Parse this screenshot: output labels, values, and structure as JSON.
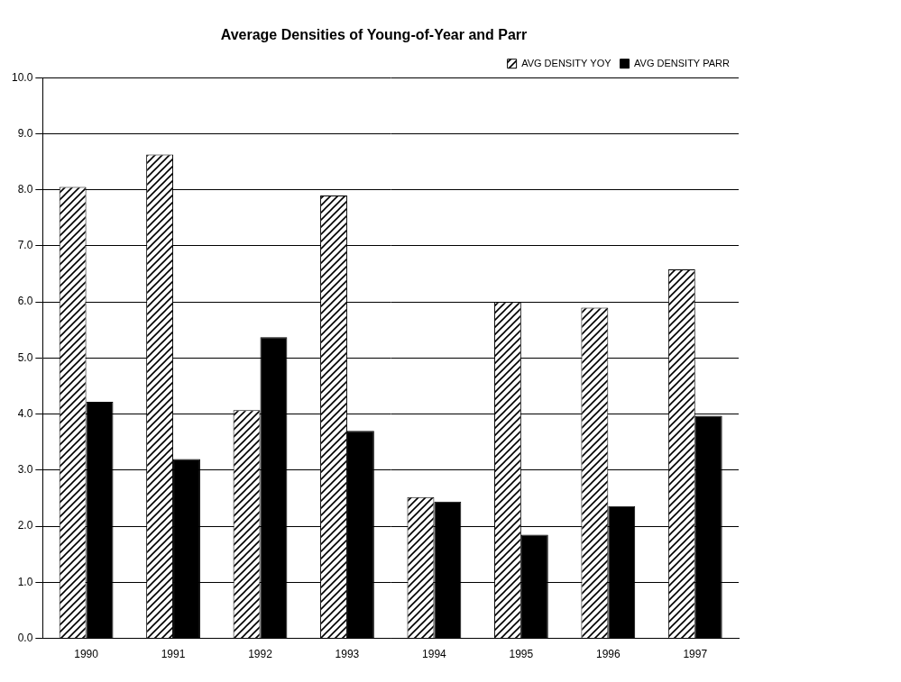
{
  "chart_data": {
    "type": "bar",
    "title": "Average Densities of Young-of-Year and Parr",
    "categories": [
      "1990",
      "1991",
      "1992",
      "1993",
      "1994",
      "1995",
      "1996",
      "1997"
    ],
    "series": [
      {
        "name": "AVG DENSITY YOY",
        "color": "#000000",
        "values": [
          8.05,
          8.63,
          4.07,
          7.9,
          2.52,
          6.0,
          5.9,
          6.58
        ]
      },
      {
        "name": "AVG DENSITY PARR",
        "color": "#000000",
        "values": [
          4.22,
          3.2,
          5.37,
          3.7,
          2.44,
          1.85,
          2.36,
          3.97
        ]
      }
    ],
    "ylim": [
      0,
      10
    ],
    "yticks": [
      {
        "value": 0,
        "label": "0.0"
      },
      {
        "value": 1,
        "label": "1.0"
      },
      {
        "value": 2,
        "label": "2.0"
      },
      {
        "value": 3,
        "label": "3.0"
      },
      {
        "value": 4,
        "label": "4.0"
      },
      {
        "value": 5,
        "label": "5.0"
      },
      {
        "value": 6,
        "label": "6.0"
      },
      {
        "value": 7,
        "label": "7.0"
      },
      {
        "value": 8,
        "label": "8.0"
      },
      {
        "value": 9,
        "label": "9.0"
      },
      {
        "value": 10,
        "label": "10.0"
      }
    ],
    "grid": true,
    "legend": "upper right"
  }
}
